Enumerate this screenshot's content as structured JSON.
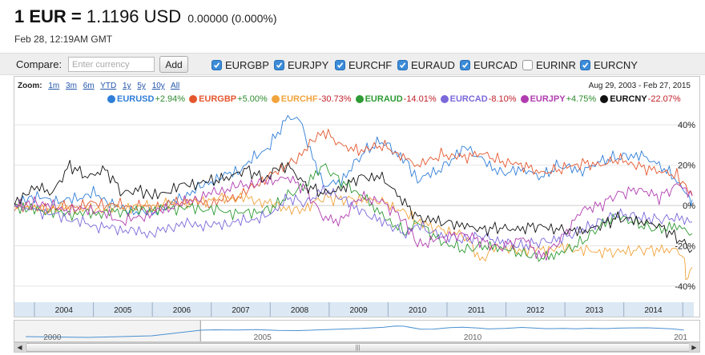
{
  "quote": {
    "base": "1 EUR =",
    "value": "1.1196 USD",
    "change": "0.00000 (0.000%)",
    "timestamp": "Feb 28, 12:19AM GMT"
  },
  "compare": {
    "label": "Compare:",
    "placeholder": "Enter currency",
    "add_label": "Add",
    "checkboxes": [
      {
        "label": "EURGBP",
        "checked": true
      },
      {
        "label": "EURJPY",
        "checked": true
      },
      {
        "label": "EURCHF",
        "checked": true
      },
      {
        "label": "EURAUD",
        "checked": true
      },
      {
        "label": "EURCAD",
        "checked": true
      },
      {
        "label": "EURINR",
        "checked": false
      },
      {
        "label": "EURCNY",
        "checked": true
      }
    ]
  },
  "zoom": {
    "label": "Zoom:",
    "links": [
      "1m",
      "3m",
      "6m",
      "YTD",
      "1y",
      "5y",
      "10y",
      "All"
    ],
    "date_range": "Aug 29, 2003  -  Feb 27, 2015"
  },
  "navigator": {
    "labels": [
      "2000",
      "2005",
      "2010",
      "201"
    ],
    "scroll_left_icon": "◀",
    "scroll_right_icon": "▶",
    "grip": "|||"
  },
  "chart_data": {
    "type": "line",
    "x_start": 2003.66,
    "x_end": 2015.16,
    "xticks": [
      "2004",
      "2005",
      "2006",
      "2007",
      "2008",
      "2009",
      "2010",
      "2011",
      "2012",
      "2013",
      "2014"
    ],
    "yticks": [
      "40%",
      "20%",
      "0%",
      "-20%",
      "-40%"
    ],
    "ytick_values": [
      40,
      20,
      0,
      -20,
      -40
    ],
    "ylim": [
      -48,
      48
    ],
    "series": [
      {
        "name": "EURUSD",
        "change": "+2.94%",
        "color": "#2f7ed8",
        "points": [
          [
            2003.66,
            0
          ],
          [
            2004.0,
            4
          ],
          [
            2004.5,
            2
          ],
          [
            2005.0,
            6
          ],
          [
            2005.5,
            -2
          ],
          [
            2006.0,
            -4
          ],
          [
            2006.5,
            4
          ],
          [
            2007.0,
            12
          ],
          [
            2007.5,
            18
          ],
          [
            2008.0,
            30
          ],
          [
            2008.3,
            44
          ],
          [
            2008.5,
            42
          ],
          [
            2008.9,
            10
          ],
          [
            2009.2,
            12
          ],
          [
            2009.6,
            27
          ],
          [
            2009.9,
            32
          ],
          [
            2010.3,
            22
          ],
          [
            2010.5,
            13
          ],
          [
            2010.9,
            18
          ],
          [
            2011.3,
            29
          ],
          [
            2011.5,
            25
          ],
          [
            2011.9,
            16
          ],
          [
            2012.3,
            18
          ],
          [
            2012.6,
            14
          ],
          [
            2012.9,
            20
          ],
          [
            2013.3,
            17
          ],
          [
            2013.6,
            22
          ],
          [
            2013.9,
            24
          ],
          [
            2014.3,
            25
          ],
          [
            2014.6,
            20
          ],
          [
            2014.9,
            13
          ],
          [
            2015.1,
            4
          ],
          [
            2015.16,
            2.94
          ]
        ]
      },
      {
        "name": "EURGBP",
        "change": "+5.00%",
        "color": "#e4572e",
        "points": [
          [
            2003.66,
            0
          ],
          [
            2004.0,
            -2
          ],
          [
            2004.5,
            -1
          ],
          [
            2005.0,
            1
          ],
          [
            2005.5,
            0
          ],
          [
            2006.0,
            -1
          ],
          [
            2006.5,
            2
          ],
          [
            2007.0,
            1
          ],
          [
            2007.5,
            5
          ],
          [
            2008.0,
            15
          ],
          [
            2008.4,
            22
          ],
          [
            2008.9,
            37
          ],
          [
            2009.2,
            30
          ],
          [
            2009.5,
            27
          ],
          [
            2009.9,
            30
          ],
          [
            2010.3,
            23
          ],
          [
            2010.5,
            20
          ],
          [
            2010.9,
            25
          ],
          [
            2011.3,
            24
          ],
          [
            2011.6,
            26
          ],
          [
            2011.9,
            22
          ],
          [
            2012.3,
            20
          ],
          [
            2012.6,
            16
          ],
          [
            2012.9,
            18
          ],
          [
            2013.3,
            21
          ],
          [
            2013.6,
            20
          ],
          [
            2013.9,
            23
          ],
          [
            2014.3,
            19
          ],
          [
            2014.6,
            17
          ],
          [
            2014.9,
            15
          ],
          [
            2015.1,
            8
          ],
          [
            2015.16,
            5
          ]
        ]
      },
      {
        "name": "EURCHF",
        "change": "-30.73%",
        "color": "#f1a33c",
        "points": [
          [
            2003.66,
            0
          ],
          [
            2004.0,
            -2
          ],
          [
            2004.5,
            -1
          ],
          [
            2005.0,
            -2
          ],
          [
            2005.5,
            -1
          ],
          [
            2006.0,
            0
          ],
          [
            2006.5,
            1
          ],
          [
            2007.0,
            3
          ],
          [
            2007.5,
            4
          ],
          [
            2008.0,
            1
          ],
          [
            2008.5,
            -3
          ],
          [
            2008.9,
            4
          ],
          [
            2009.2,
            3
          ],
          [
            2009.6,
            3
          ],
          [
            2009.9,
            2
          ],
          [
            2010.3,
            -4
          ],
          [
            2010.5,
            -8
          ],
          [
            2010.9,
            -12
          ],
          [
            2011.3,
            -15
          ],
          [
            2011.6,
            -28
          ],
          [
            2011.8,
            -20
          ],
          [
            2012.0,
            -22
          ],
          [
            2012.5,
            -22
          ],
          [
            2013.0,
            -21
          ],
          [
            2013.5,
            -23
          ],
          [
            2013.9,
            -23
          ],
          [
            2014.3,
            -22
          ],
          [
            2014.6,
            -22
          ],
          [
            2014.9,
            -22
          ],
          [
            2015.02,
            -25
          ],
          [
            2015.05,
            -36
          ],
          [
            2015.16,
            -30.73
          ]
        ]
      },
      {
        "name": "EURAUD",
        "change": "-14.01%",
        "color": "#2e9b34",
        "points": [
          [
            2003.66,
            0
          ],
          [
            2004.0,
            -2
          ],
          [
            2004.5,
            -4
          ],
          [
            2005.0,
            -4
          ],
          [
            2005.5,
            -3
          ],
          [
            2006.0,
            -2
          ],
          [
            2006.5,
            -1
          ],
          [
            2007.0,
            -2
          ],
          [
            2007.5,
            -4
          ],
          [
            2008.0,
            -2
          ],
          [
            2008.3,
            5
          ],
          [
            2008.6,
            10
          ],
          [
            2008.9,
            20
          ],
          [
            2009.2,
            12
          ],
          [
            2009.6,
            4
          ],
          [
            2009.9,
            -5
          ],
          [
            2010.3,
            -14
          ],
          [
            2010.5,
            -8
          ],
          [
            2010.9,
            -18
          ],
          [
            2011.3,
            -22
          ],
          [
            2011.6,
            -20
          ],
          [
            2011.9,
            -21
          ],
          [
            2012.3,
            -24
          ],
          [
            2012.6,
            -26
          ],
          [
            2012.9,
            -24
          ],
          [
            2013.3,
            -18
          ],
          [
            2013.6,
            -10
          ],
          [
            2013.9,
            -5
          ],
          [
            2014.3,
            -10
          ],
          [
            2014.6,
            -12
          ],
          [
            2014.9,
            -10
          ],
          [
            2015.16,
            -14.01
          ]
        ]
      },
      {
        "name": "EURCAD",
        "change": "-8.10%",
        "color": "#7b68d9",
        "points": [
          [
            2003.66,
            0
          ],
          [
            2004.0,
            -2
          ],
          [
            2004.5,
            -6
          ],
          [
            2005.0,
            -10
          ],
          [
            2005.5,
            -12
          ],
          [
            2006.0,
            -14
          ],
          [
            2006.5,
            -9
          ],
          [
            2007.0,
            -10
          ],
          [
            2007.5,
            -8
          ],
          [
            2008.0,
            -5
          ],
          [
            2008.3,
            4
          ],
          [
            2008.6,
            1
          ],
          [
            2008.9,
            8
          ],
          [
            2009.2,
            4
          ],
          [
            2009.6,
            -4
          ],
          [
            2009.9,
            -8
          ],
          [
            2010.3,
            -14
          ],
          [
            2010.5,
            -10
          ],
          [
            2010.9,
            -15
          ],
          [
            2011.3,
            -17
          ],
          [
            2011.6,
            -15
          ],
          [
            2011.9,
            -18
          ],
          [
            2012.3,
            -20
          ],
          [
            2012.6,
            -18
          ],
          [
            2012.9,
            -17
          ],
          [
            2013.3,
            -12
          ],
          [
            2013.6,
            -8
          ],
          [
            2013.9,
            -4
          ],
          [
            2014.3,
            -6
          ],
          [
            2014.6,
            -7
          ],
          [
            2014.9,
            -6
          ],
          [
            2015.16,
            -8.1
          ]
        ]
      },
      {
        "name": "EURJPY",
        "change": "+4.75%",
        "color": "#b03cb0",
        "points": [
          [
            2003.66,
            0
          ],
          [
            2004.0,
            2
          ],
          [
            2004.5,
            -2
          ],
          [
            2005.0,
            -2
          ],
          [
            2005.5,
            -8
          ],
          [
            2006.0,
            -4
          ],
          [
            2006.5,
            1
          ],
          [
            2007.0,
            6
          ],
          [
            2007.5,
            10
          ],
          [
            2008.0,
            12
          ],
          [
            2008.3,
            14
          ],
          [
            2008.6,
            8
          ],
          [
            2008.9,
            -6
          ],
          [
            2009.2,
            -8
          ],
          [
            2009.5,
            4
          ],
          [
            2009.9,
            2
          ],
          [
            2010.3,
            -8
          ],
          [
            2010.5,
            -20
          ],
          [
            2010.9,
            -16
          ],
          [
            2011.3,
            -14
          ],
          [
            2011.6,
            -18
          ],
          [
            2011.9,
            -21
          ],
          [
            2012.3,
            -16
          ],
          [
            2012.6,
            -26
          ],
          [
            2012.9,
            -18
          ],
          [
            2013.3,
            -2
          ],
          [
            2013.6,
            0
          ],
          [
            2013.9,
            6
          ],
          [
            2014.3,
            8
          ],
          [
            2014.6,
            4
          ],
          [
            2014.9,
            10
          ],
          [
            2015.05,
            8
          ],
          [
            2015.16,
            4.75
          ]
        ]
      },
      {
        "name": "EURCNY",
        "change": "-22.07%",
        "color": "#111111",
        "points": [
          [
            2003.66,
            0
          ],
          [
            2004.0,
            10
          ],
          [
            2004.3,
            6
          ],
          [
            2004.6,
            20
          ],
          [
            2004.9,
            14
          ],
          [
            2005.2,
            18
          ],
          [
            2005.5,
            6
          ],
          [
            2005.8,
            8
          ],
          [
            2006.0,
            4
          ],
          [
            2006.5,
            10
          ],
          [
            2007.0,
            12
          ],
          [
            2007.3,
            14
          ],
          [
            2007.6,
            18
          ],
          [
            2007.9,
            13
          ],
          [
            2008.1,
            18
          ],
          [
            2008.3,
            20
          ],
          [
            2008.6,
            10
          ],
          [
            2008.9,
            6
          ],
          [
            2009.2,
            8
          ],
          [
            2009.5,
            14
          ],
          [
            2009.9,
            14
          ],
          [
            2010.2,
            4
          ],
          [
            2010.5,
            -6
          ],
          [
            2010.9,
            -8
          ],
          [
            2011.3,
            -10
          ],
          [
            2011.6,
            -12
          ],
          [
            2011.9,
            -11
          ],
          [
            2012.2,
            -12
          ],
          [
            2012.5,
            -10
          ],
          [
            2012.9,
            -12
          ],
          [
            2013.3,
            -13
          ],
          [
            2013.6,
            -10
          ],
          [
            2013.9,
            -6
          ],
          [
            2014.3,
            -8
          ],
          [
            2014.6,
            -10
          ],
          [
            2014.9,
            -16
          ],
          [
            2015.16,
            -22.07
          ]
        ]
      }
    ]
  }
}
